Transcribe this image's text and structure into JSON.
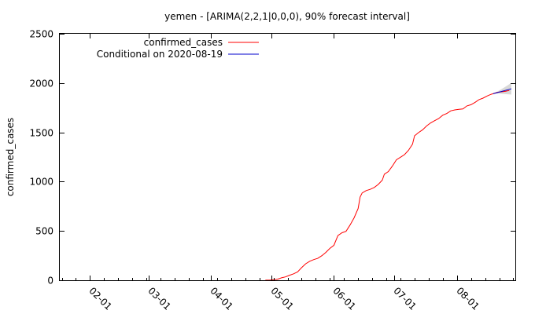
{
  "chart_data": {
    "type": "line",
    "title": "yemen -  [ARIMA(2,2,1|0,0,0), 90% forecast interval]",
    "xlabel": "",
    "ylabel": "confirmed_cases",
    "ylim": [
      0,
      2500
    ],
    "xlim": [
      "2020-01-17",
      "2020-08-30"
    ],
    "y_ticks": [
      0,
      500,
      1000,
      1500,
      2000,
      2500
    ],
    "x_ticks": [
      {
        "date": "2020-02-01",
        "label": "02-01"
      },
      {
        "date": "2020-03-01",
        "label": "03-01"
      },
      {
        "date": "2020-04-01",
        "label": "04-01"
      },
      {
        "date": "2020-05-01",
        "label": "05-01"
      },
      {
        "date": "2020-06-01",
        "label": "06-01"
      },
      {
        "date": "2020-07-01",
        "label": "07-01"
      },
      {
        "date": "2020-08-01",
        "label": "08-01"
      }
    ],
    "grid": false,
    "legend_position": "top-left",
    "series": [
      {
        "name": "confirmed_cases",
        "color": "#ff0000",
        "points": [
          [
            "2020-04-28",
            1
          ],
          [
            "2020-04-30",
            1
          ],
          [
            "2020-05-02",
            5
          ],
          [
            "2020-05-04",
            10
          ],
          [
            "2020-05-06",
            25
          ],
          [
            "2020-05-08",
            34
          ],
          [
            "2020-05-10",
            51
          ],
          [
            "2020-05-12",
            65
          ],
          [
            "2020-05-14",
            85
          ],
          [
            "2020-05-16",
            128
          ],
          [
            "2020-05-18",
            167
          ],
          [
            "2020-05-20",
            193
          ],
          [
            "2020-05-22",
            209
          ],
          [
            "2020-05-24",
            222
          ],
          [
            "2020-05-26",
            249
          ],
          [
            "2020-05-28",
            283
          ],
          [
            "2020-05-30",
            323
          ],
          [
            "2020-06-01",
            354
          ],
          [
            "2020-06-03",
            453
          ],
          [
            "2020-06-05",
            482
          ],
          [
            "2020-06-07",
            496
          ],
          [
            "2020-06-09",
            560
          ],
          [
            "2020-06-11",
            632
          ],
          [
            "2020-06-13",
            728
          ],
          [
            "2020-06-14",
            844
          ],
          [
            "2020-06-15",
            885
          ],
          [
            "2020-06-17",
            909
          ],
          [
            "2020-06-19",
            922
          ],
          [
            "2020-06-21",
            941
          ],
          [
            "2020-06-23",
            972
          ],
          [
            "2020-06-25",
            1015
          ],
          [
            "2020-06-26",
            1076
          ],
          [
            "2020-06-28",
            1103
          ],
          [
            "2020-06-30",
            1158
          ],
          [
            "2020-07-02",
            1221
          ],
          [
            "2020-07-04",
            1248
          ],
          [
            "2020-07-06",
            1274
          ],
          [
            "2020-07-08",
            1318
          ],
          [
            "2020-07-10",
            1380
          ],
          [
            "2020-07-11",
            1465
          ],
          [
            "2020-07-13",
            1498
          ],
          [
            "2020-07-15",
            1526
          ],
          [
            "2020-07-17",
            1565
          ],
          [
            "2020-07-19",
            1596
          ],
          [
            "2020-07-21",
            1619
          ],
          [
            "2020-07-23",
            1640
          ],
          [
            "2020-07-25",
            1674
          ],
          [
            "2020-07-27",
            1691
          ],
          [
            "2020-07-29",
            1718
          ],
          [
            "2020-07-31",
            1728
          ],
          [
            "2020-08-02",
            1734
          ],
          [
            "2020-08-04",
            1737
          ],
          [
            "2020-08-06",
            1768
          ],
          [
            "2020-08-08",
            1780
          ],
          [
            "2020-08-10",
            1804
          ],
          [
            "2020-08-12",
            1832
          ],
          [
            "2020-08-14",
            1847
          ],
          [
            "2020-08-16",
            1869
          ],
          [
            "2020-08-18",
            1886
          ],
          [
            "2020-08-19",
            1892
          ],
          [
            "2020-08-21",
            1906
          ],
          [
            "2020-08-23",
            1911
          ],
          [
            "2020-08-25",
            1916
          ],
          [
            "2020-08-27",
            1925
          ]
        ]
      },
      {
        "name": "Conditional on 2020-08-19",
        "color": "#0000cc",
        "points": [
          [
            "2020-08-19",
            1892
          ],
          [
            "2020-08-21",
            1903
          ],
          [
            "2020-08-23",
            1914
          ],
          [
            "2020-08-25",
            1925
          ],
          [
            "2020-08-27",
            1936
          ],
          [
            "2020-08-28",
            1942
          ]
        ],
        "interval_low": [
          1892,
          1893,
          1891,
          1888,
          1885,
          1883
        ],
        "interval_high": [
          1892,
          1913,
          1937,
          1962,
          1988,
          2001
        ]
      }
    ]
  }
}
